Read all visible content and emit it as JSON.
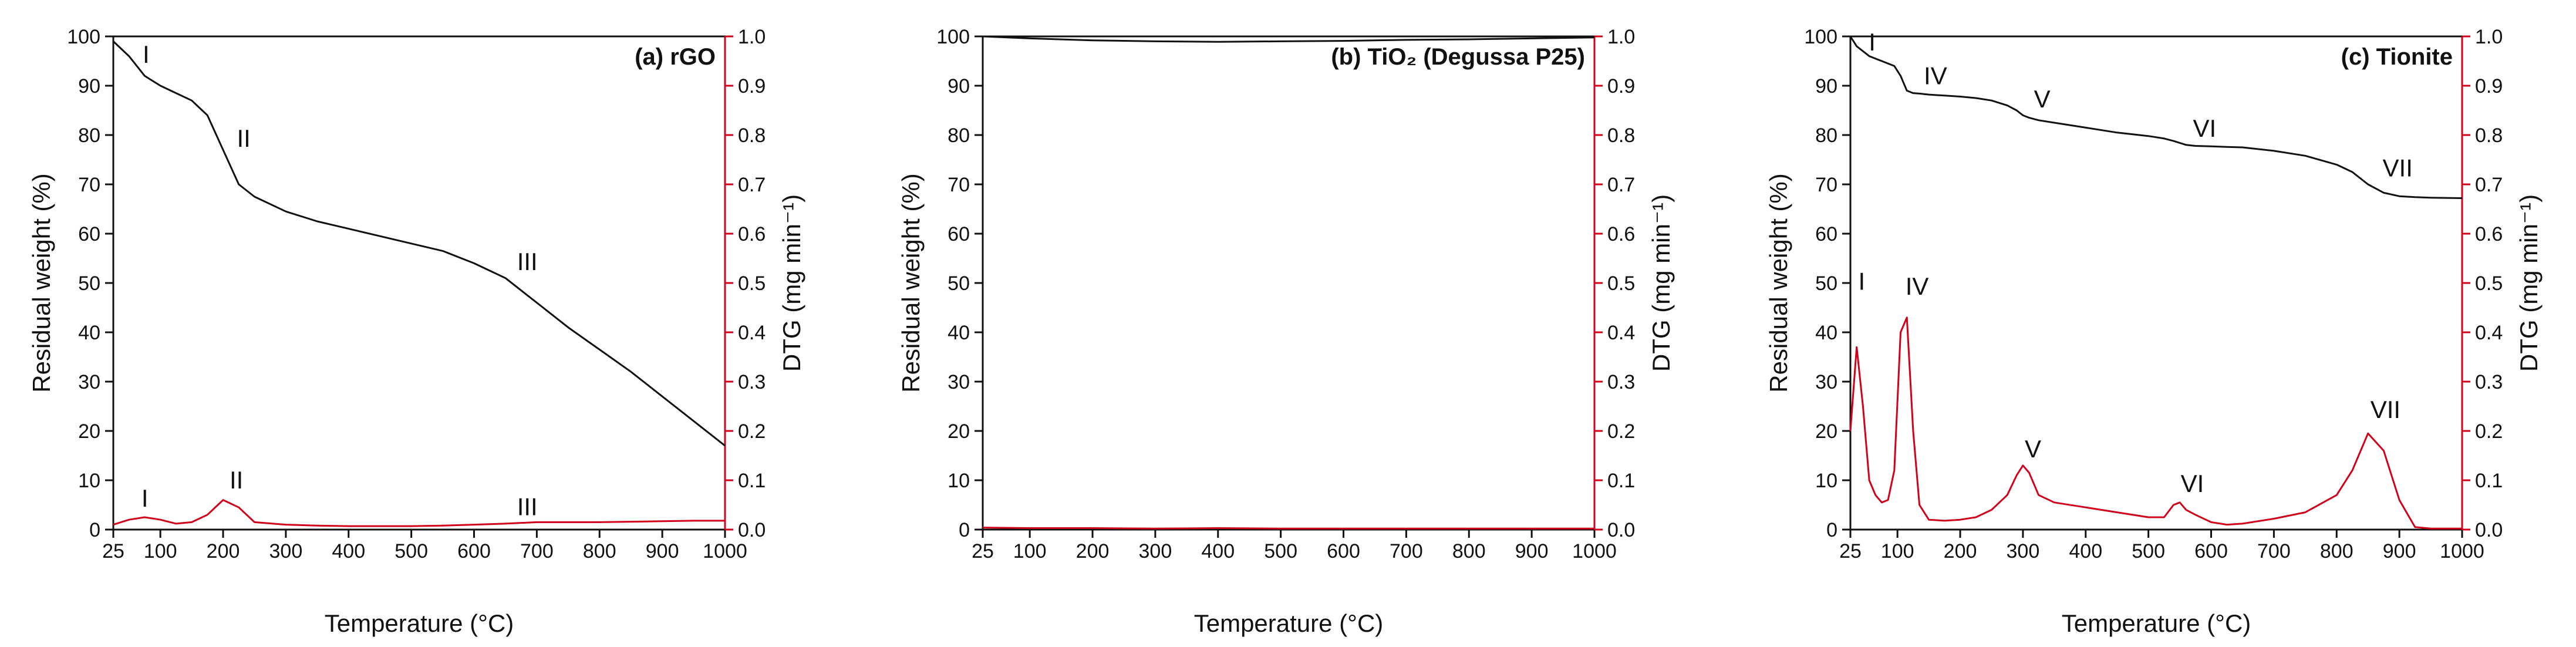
{
  "chart_data": [
    {
      "type": "line",
      "title": "(a) rGO",
      "x_label": "Temperature (°C)",
      "y_label": "Residual weight (%)",
      "y2_label": "DTG (mg min⁻¹)",
      "xlim": [
        25,
        1000
      ],
      "xticks": [
        25,
        100,
        200,
        300,
        400,
        500,
        600,
        700,
        800,
        900,
        1000
      ],
      "ylim": [
        0,
        100
      ],
      "yticks": [
        0,
        10,
        20,
        30,
        40,
        50,
        60,
        70,
        80,
        90,
        100
      ],
      "y2lim": [
        0,
        1
      ],
      "y2ticks": [
        {
          "value": 0,
          "label": "0.0"
        },
        {
          "value": 0.1,
          "label": "0.1"
        },
        {
          "value": 0.2,
          "label": "0.2"
        },
        {
          "value": 0.3,
          "label": "0.3"
        },
        {
          "value": 0.4,
          "label": "0.4"
        },
        {
          "value": 0.5,
          "label": "0.5"
        },
        {
          "value": 0.6,
          "label": "0.6"
        },
        {
          "value": 0.7,
          "label": "0.7"
        },
        {
          "value": 0.8,
          "label": "0.8"
        },
        {
          "value": 0.9,
          "label": "0.9"
        },
        {
          "value": 1,
          "label": "1.0"
        }
      ],
      "x": [
        25,
        50,
        75,
        100,
        125,
        150,
        175,
        200,
        225,
        250,
        300,
        350,
        400,
        450,
        500,
        550,
        600,
        650,
        700,
        750,
        800,
        850,
        900,
        950,
        1000
      ],
      "series": [
        {
          "color": "#111111",
          "values": [
            99,
            96,
            92,
            90,
            88.5,
            87,
            84,
            77,
            70,
            67.5,
            64.5,
            62.5,
            61,
            59.5,
            58,
            56.5,
            54,
            51,
            46,
            41,
            36.5,
            32,
            27,
            22,
            17
          ]
        },
        {
          "color": "#d0021b",
          "axis": "y2",
          "values": [
            0.01,
            0.02,
            0.025,
            0.02,
            0.012,
            0.015,
            0.03,
            0.06,
            0.045,
            0.015,
            0.01,
            0.008,
            0.007,
            0.007,
            0.007,
            0.008,
            0.01,
            0.012,
            0.015,
            0.015,
            0.015,
            0.016,
            0.017,
            0.018,
            0.018
          ]
        }
      ],
      "annotations": [
        "I",
        "II",
        "III",
        "I",
        "II",
        "III"
      ]
    },
    {
      "type": "line",
      "title": "(b) TiO₂ (Degussa P25)",
      "x_label": "Temperature (°C)",
      "y_label": "Residual weight (%)",
      "y2_label": "DTG (mg min⁻¹)",
      "xlim": [
        25,
        1000
      ],
      "xticks": [
        25,
        100,
        200,
        300,
        400,
        500,
        600,
        700,
        800,
        900,
        1000
      ],
      "ylim": [
        0,
        100
      ],
      "yticks": [
        0,
        10,
        20,
        30,
        40,
        50,
        60,
        70,
        80,
        90,
        100
      ],
      "y2lim": [
        0,
        1
      ],
      "y2ticks": [
        {
          "value": 0,
          "label": "0.0"
        },
        {
          "value": 0.1,
          "label": "0.1"
        },
        {
          "value": 0.2,
          "label": "0.2"
        },
        {
          "value": 0.3,
          "label": "0.3"
        },
        {
          "value": 0.4,
          "label": "0.4"
        },
        {
          "value": 0.5,
          "label": "0.5"
        },
        {
          "value": 0.6,
          "label": "0.6"
        },
        {
          "value": 0.7,
          "label": "0.7"
        },
        {
          "value": 0.8,
          "label": "0.8"
        },
        {
          "value": 0.9,
          "label": "0.9"
        },
        {
          "value": 1,
          "label": "1.0"
        }
      ],
      "x": [
        25,
        100,
        200,
        300,
        400,
        500,
        600,
        700,
        800,
        900,
        1000
      ],
      "series": [
        {
          "color": "#111111",
          "values": [
            100,
            99.6,
            99.2,
            99,
            98.9,
            99,
            99.1,
            99.3,
            99.4,
            99.6,
            99.8
          ]
        },
        {
          "color": "#d0021b",
          "axis": "y2",
          "values": [
            0.004,
            0.003,
            0.003,
            0.002,
            0.003,
            0.002,
            0.002,
            0.002,
            0.002,
            0.002,
            0.002
          ]
        }
      ],
      "annotations": []
    },
    {
      "type": "line",
      "title": "(c) Tionite",
      "x_label": "Temperature (°C)",
      "y_label": "Residual weight (%)",
      "y2_label": "DTG (mg min⁻¹)",
      "xlim": [
        25,
        1000
      ],
      "xticks": [
        25,
        100,
        200,
        300,
        400,
        500,
        600,
        700,
        800,
        900,
        1000
      ],
      "ylim": [
        0,
        100
      ],
      "yticks": [
        0,
        10,
        20,
        30,
        40,
        50,
        60,
        70,
        80,
        90,
        100
      ],
      "y2lim": [
        0,
        1
      ],
      "y2ticks": [
        {
          "value": 0,
          "label": "0.0"
        },
        {
          "value": 0.1,
          "label": "0.1"
        },
        {
          "value": 0.2,
          "label": "0.2"
        },
        {
          "value": 0.3,
          "label": "0.3"
        },
        {
          "value": 0.4,
          "label": "0.4"
        },
        {
          "value": 0.5,
          "label": "0.5"
        },
        {
          "value": 0.6,
          "label": "0.6"
        },
        {
          "value": 0.7,
          "label": "0.7"
        },
        {
          "value": 0.8,
          "label": "0.8"
        },
        {
          "value": 0.9,
          "label": "0.9"
        },
        {
          "value": 1,
          "label": "1.0"
        }
      ],
      "x": [
        25,
        35,
        45,
        55,
        65,
        75,
        85,
        95,
        105,
        115,
        125,
        135,
        150,
        175,
        200,
        225,
        250,
        275,
        290,
        300,
        310,
        325,
        350,
        400,
        450,
        500,
        525,
        540,
        550,
        560,
        575,
        600,
        625,
        650,
        700,
        750,
        800,
        825,
        850,
        875,
        900,
        925,
        950,
        1000
      ],
      "series": [
        {
          "color": "#111111",
          "values": [
            100,
            98,
            97,
            96,
            95.5,
            95,
            94.5,
            94,
            92,
            89,
            88.5,
            88.4,
            88.2,
            88,
            87.8,
            87.5,
            87,
            86,
            85,
            84,
            83.5,
            83,
            82.5,
            81.5,
            80.5,
            79.8,
            79.3,
            78.8,
            78.4,
            78,
            77.8,
            77.7,
            77.6,
            77.5,
            76.8,
            75.8,
            74,
            72.5,
            70,
            68.3,
            67.6,
            67.4,
            67.3,
            67.2
          ]
        },
        {
          "color": "#d0021b",
          "axis": "y2",
          "values": [
            0.2,
            0.37,
            0.25,
            0.1,
            0.07,
            0.055,
            0.06,
            0.12,
            0.4,
            0.43,
            0.2,
            0.05,
            0.02,
            0.018,
            0.02,
            0.025,
            0.04,
            0.07,
            0.11,
            0.13,
            0.115,
            0.07,
            0.055,
            0.045,
            0.035,
            0.025,
            0.025,
            0.05,
            0.055,
            0.04,
            0.03,
            0.015,
            0.01,
            0.012,
            0.022,
            0.035,
            0.07,
            0.12,
            0.195,
            0.16,
            0.06,
            0.005,
            0.002,
            0.002
          ]
        }
      ],
      "annotations": [
        "I",
        "IV",
        "V",
        "VI",
        "VII",
        "I",
        "IV",
        "V",
        "VI",
        "VII"
      ]
    }
  ]
}
